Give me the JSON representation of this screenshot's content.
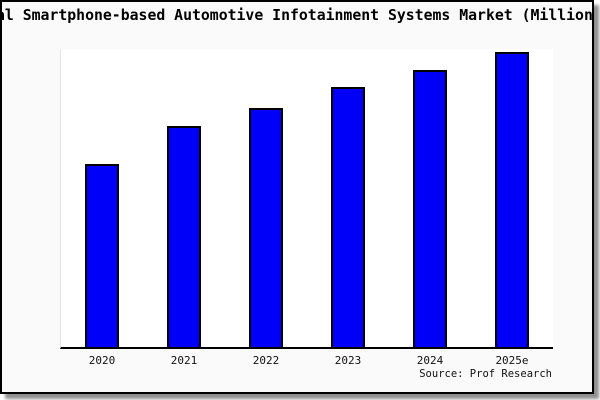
{
  "figure": {
    "background": "#fafafa",
    "plot_background": "#ffffff",
    "border_color": "#000000",
    "shadow_color": "#8f8f8f"
  },
  "source_note": "Source: Prof Research",
  "chart_data": {
    "type": "bar",
    "title": "al Smartphone-based Automotive Infotainment Systems Market (Million",
    "title_truncated": true,
    "categories": [
      "2020",
      "2021",
      "2022",
      "2023",
      "2024",
      "2025e"
    ],
    "values": [
      62,
      75,
      81,
      88,
      94,
      100
    ],
    "values_are_estimates": true,
    "xlabel": "",
    "ylabel": "",
    "ylim": [
      0,
      101
    ],
    "y_axis_labels_visible": false,
    "grid": false,
    "legend": false,
    "bar_color": "#0000f8",
    "bar_edge_color": "#000000",
    "axis_line_color": "#000000"
  }
}
